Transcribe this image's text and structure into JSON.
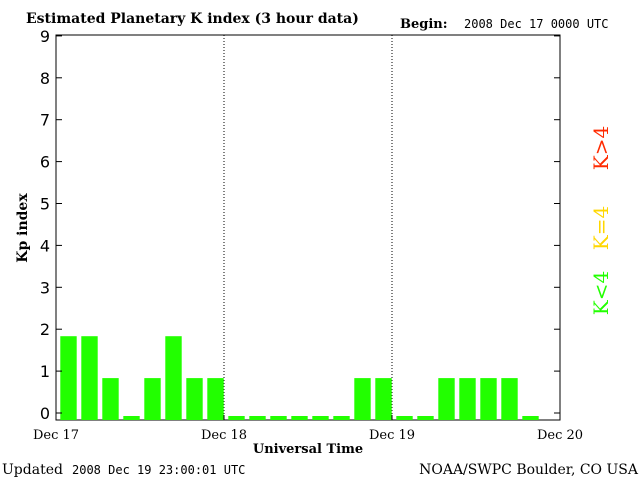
{
  "header": {
    "title": "Estimated Planetary K index (3 hour data)",
    "begin_label": "Begin:",
    "begin_value": "2008 Dec 17 0000 UTC"
  },
  "footer": {
    "updated_label": "Updated",
    "updated_value": "2008 Dec 19 23:00:01 UTC",
    "source": "NOAA/SWPC Boulder, CO USA"
  },
  "legend": {
    "high": {
      "label": "K>4",
      "color": "#ff2a00"
    },
    "mid": {
      "label": "K=4",
      "color": "#ffd700"
    },
    "low": {
      "label": "K<4",
      "color": "#22ff00"
    }
  },
  "chart_data": {
    "type": "bar",
    "title": "Estimated Planetary K index (3 hour data)",
    "xlabel": "Universal Time",
    "ylabel": "Kp index",
    "ylim": [
      0,
      9
    ],
    "yticks": [
      0,
      1,
      2,
      3,
      4,
      5,
      6,
      7,
      8,
      9
    ],
    "xlim_days": [
      0,
      3
    ],
    "xtick_labels": [
      "Dec 17",
      "Dec 18",
      "Dec 19",
      "Dec 20"
    ],
    "day_separators": [
      1,
      2
    ],
    "interval_hours": 3,
    "bar_color": "#22ff00",
    "values": [
      2,
      2,
      1,
      0,
      1,
      2,
      1,
      1,
      0,
      0,
      0,
      0,
      0,
      0,
      1,
      1,
      0,
      0,
      1,
      1,
      1,
      1,
      0
    ]
  }
}
